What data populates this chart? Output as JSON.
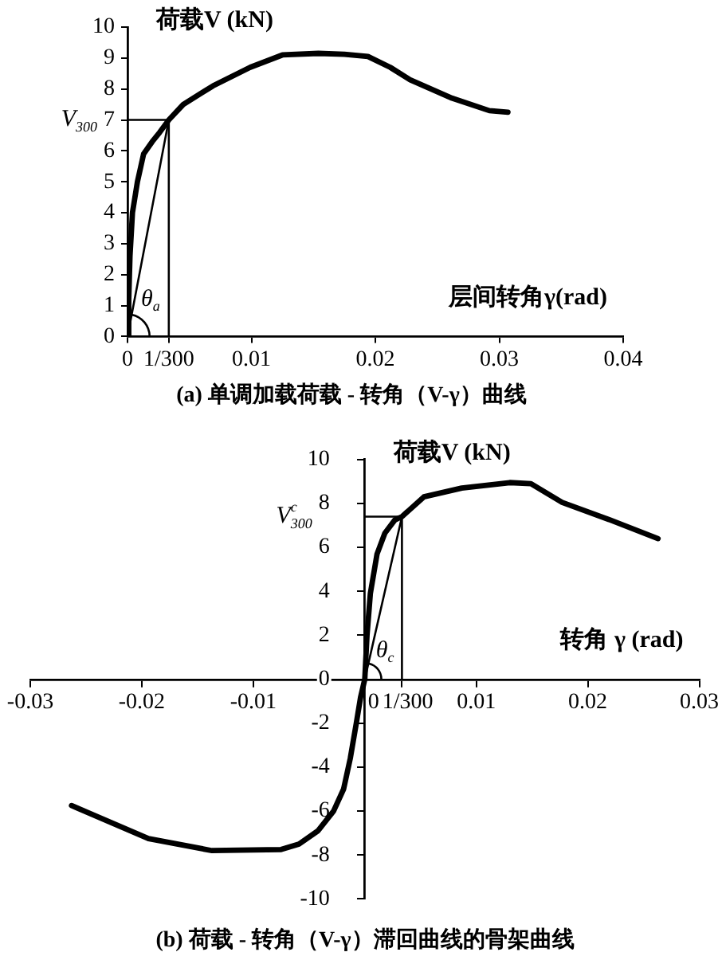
{
  "chart_data": [
    {
      "type": "line",
      "title": "(a) 单调加载荷载 - 转角（V-γ）曲线",
      "xlabel": "层间转角γ(rad)",
      "ylabel": "荷载V (kN)",
      "xlim": [
        0,
        0.04
      ],
      "xticks": [
        0,
        {
          "value": 0.003333,
          "label": "1/300"
        },
        0.01,
        0.02,
        0.03,
        0.04
      ],
      "ylim": [
        0,
        10
      ],
      "yticks": [
        0,
        1,
        2,
        3,
        4,
        5,
        6,
        7,
        8,
        9,
        10
      ],
      "series": [
        {
          "color": "#000000",
          "x": [
            0,
            0.0001,
            0.0002,
            0.0004,
            0.0008,
            0.0013,
            0.002,
            0.0026,
            0.003333,
            0.0045,
            0.0069,
            0.0099,
            0.0125,
            0.0154,
            0.0175,
            0.0194,
            0.0212,
            0.0228,
            0.0262,
            0.0292,
            0.0307
          ],
          "values": [
            0,
            1.2,
            2.6,
            4,
            5,
            5.9,
            6.3,
            6.6,
            7,
            7.5,
            8.1,
            8.7,
            9.1,
            9.15,
            9.12,
            9.05,
            8.7,
            8.3,
            7.7,
            7.3,
            7.25
          ]
        },
        {
          "color": "#000000",
          "x": [
            0,
            0.003333,
            0.003333
          ],
          "values": [
            7,
            7,
            0
          ]
        },
        {
          "color": "#000000",
          "x": [
            0,
            0.003333
          ],
          "values": [
            0,
            7
          ]
        }
      ],
      "annotations": [
        {
          "text": "V$_{300}$",
          "x": 0,
          "y": 7
        },
        {
          "text": "θ$_{a}$",
          "x": 0.0011,
          "y": 1.2
        }
      ]
    },
    {
      "type": "line",
      "title": "(b) 荷载 - 转角（V-γ）滞回曲线的骨架曲线",
      "xlabel": "转角 γ (rad)",
      "ylabel": "荷载V (kN)",
      "xlim": [
        -0.03,
        0.03
      ],
      "xticks": [
        -0.03,
        -0.02,
        -0.01,
        0,
        {
          "value": 0.003333,
          "label": "1/300"
        },
        0.01,
        0.02,
        0.03
      ],
      "ylim": [
        -10,
        10
      ],
      "yticks": [
        -10,
        -8,
        -6,
        -4,
        -2,
        0,
        2,
        4,
        6,
        8,
        10
      ],
      "series": [
        {
          "color": "#000000",
          "x": [
            -0.0263,
            -0.0194,
            -0.0137,
            -0.0075,
            -0.0059,
            -0.0042,
            -0.0028,
            -0.0019,
            -0.0013,
            -0.00076,
            -0.00037,
            0,
            0.0002,
            0.0005,
            0.0011,
            0.0018,
            0.0027,
            0.003333,
            0.0053,
            0.0087,
            0.013,
            0.0149,
            0.0177,
            0.022,
            0.0263
          ],
          "values": [
            -5.75,
            -7.25,
            -7.8,
            -7.75,
            -7.5,
            -6.9,
            -6,
            -5,
            -3.6,
            -2,
            -0.8,
            0,
            2,
            3.9,
            5.7,
            6.65,
            7.25,
            7.4,
            8.3,
            8.7,
            8.95,
            8.9,
            8.05,
            7.25,
            6.4
          ]
        },
        {
          "color": "#000000",
          "x": [
            0,
            0.003333,
            0.003333
          ],
          "values": [
            7.4,
            7.4,
            0
          ]
        },
        {
          "color": "#000000",
          "x": [
            0,
            0.003333
          ],
          "values": [
            0,
            7.4
          ]
        }
      ],
      "annotations": [
        {
          "text": "V$^{c}$$_{300}$",
          "x": 0,
          "y": 7.4
        },
        {
          "text": "θ$_{c}$",
          "x": 0.001,
          "y": 1.3
        }
      ]
    }
  ]
}
